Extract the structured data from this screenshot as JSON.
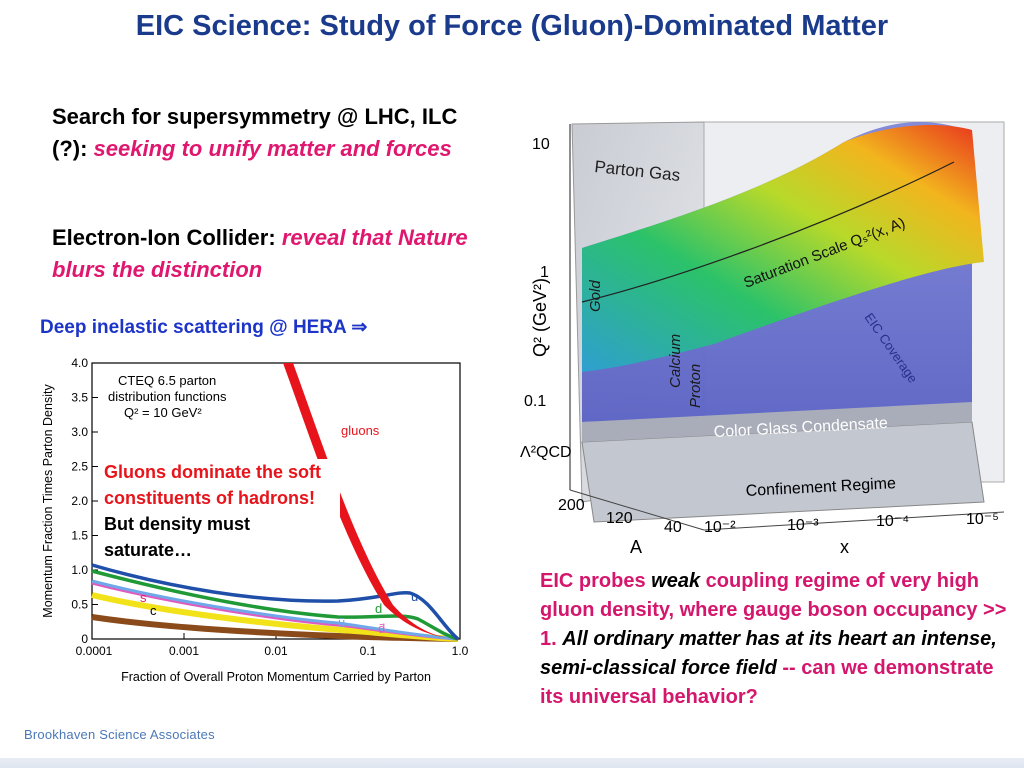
{
  "slide": {
    "title": "EIC Science: Study of Force (Gluon)-Dominated Matter",
    "bullet1": {
      "lead": "Search for supersymmetry @ LHC, ILC (?):",
      "emph": "seeking to unify matter and forces"
    },
    "bullet2": {
      "lead": "Electron-Ion Collider:",
      "emph": "reveal that Nature blurs the distinction"
    },
    "dis_label": "Deep inelastic scattering @ HERA ⇒",
    "footer": "Brookhaven Science Associates"
  },
  "pdf_plot": {
    "legend": [
      "CTEQ 6.5 parton",
      "distribution functions",
      "Q² = 10 GeV²"
    ],
    "gluons_label": "gluons",
    "callout_red": "Gluons dominate the soft constituents of hadrons!",
    "callout_black": "But density must saturate…",
    "ylabel": "Momentum Fraction Times Parton Density",
    "xlabel": "Fraction of Overall Proton Momentum Carried by Parton",
    "yticks": [
      "0",
      "0.5",
      "1.0",
      "1.5",
      "2.0",
      "2.5",
      "3.0",
      "3.5",
      "4.0"
    ],
    "xticks": [
      "0.0001",
      "0.001",
      "0.01",
      "0.1",
      "1.0"
    ],
    "curve_labels": {
      "u": "u",
      "d": "d",
      "ubar": "ū",
      "dbar": "d̄",
      "s": "s",
      "c": "c"
    },
    "colors": {
      "gluons": "#e8141b",
      "u": "#1f4fa8",
      "d": "#1f9a37",
      "ubar": "#6fa8e8",
      "dbar": "#e05bc0",
      "s": "#f2e21a",
      "c": "#8a4a1a"
    }
  },
  "saturation_plot": {
    "region_labels": {
      "parton_gas": "Parton Gas",
      "sat_scale": "Saturation Scale Qₛ²(x, A)",
      "cgc": "Color Glass Condensate",
      "confinement": "Confinement Regime",
      "eic_coverage": "EIC Coverage",
      "gold": "Gold",
      "calcium": "Calcium",
      "proton": "Proton"
    },
    "yaxis_title": "Q² (GeV²)",
    "yticks": [
      "10",
      "1",
      "0.1",
      "Λ²QCD"
    ],
    "a_ticks": [
      "200",
      "120",
      "40"
    ],
    "a_label": "A",
    "x_ticks": [
      "10⁻²",
      "10⁻³",
      "10⁻⁴",
      "10⁻⁵"
    ],
    "x_label": "x"
  },
  "eic_text": {
    "p1": "EIC probes ",
    "weak": "weak",
    "p2": " coupling regime of very high gluon density, where gauge boson occupancy >> 1.  ",
    "p3": "All ordinary matter has at its heart an intense, semi-classical force field",
    "p4": " -- can we demonstrate its universal behavior?"
  }
}
